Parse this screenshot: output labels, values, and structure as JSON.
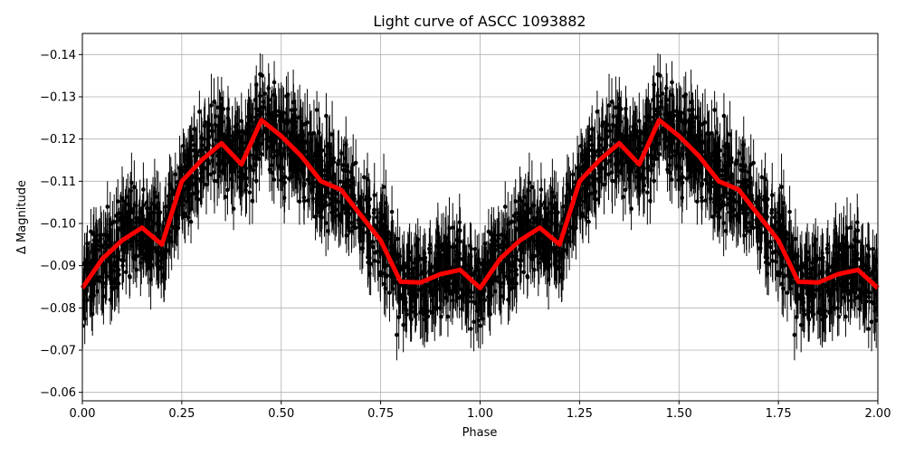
{
  "chart_data": {
    "type": "scatter",
    "title": "Light curve of ASCC 1093882",
    "xlabel": "Phase",
    "ylabel": "Δ Magnitude",
    "xlim": [
      0,
      2
    ],
    "ylim": [
      -0.145,
      -0.058
    ],
    "y_inverted": true,
    "grid": true,
    "xticks": [
      "0.00",
      "0.25",
      "0.50",
      "0.75",
      "1.00",
      "1.25",
      "1.50",
      "1.75",
      "2.00"
    ],
    "xtick_values": [
      0,
      0.25,
      0.5,
      0.75,
      1,
      1.25,
      1.5,
      1.75,
      2
    ],
    "yticks": [
      "−0.14",
      "−0.13",
      "−0.12",
      "−0.11",
      "−0.10",
      "−0.09",
      "−0.08",
      "−0.07",
      "−0.06"
    ],
    "ytick_values": [
      -0.14,
      -0.13,
      -0.12,
      -0.11,
      -0.1,
      -0.09,
      -0.08,
      -0.07,
      -0.06
    ],
    "series": [
      {
        "kind": "errorbar-points",
        "color": "#000000"
      },
      {
        "kind": "line",
        "color": "#ff0000",
        "x": [
          0,
          0.05,
          0.1,
          0.15,
          0.2,
          0.25,
          0.3,
          0.35,
          0.4,
          0.45,
          0.5,
          0.55,
          0.6,
          0.65,
          0.7,
          0.75,
          0.8,
          0.85,
          0.9,
          0.95,
          1.0,
          1.05,
          1.1,
          1.15,
          1.2,
          1.25,
          1.3,
          1.35,
          1.4,
          1.45,
          1.5,
          1.55,
          1.6,
          1.65,
          1.7,
          1.75,
          1.8,
          1.85,
          1.9,
          1.95,
          2.0
        ],
        "y": [
          -0.0847,
          -0.0916,
          -0.096,
          -0.099,
          -0.095,
          -0.11,
          -0.115,
          -0.119,
          -0.114,
          -0.1245,
          -0.1207,
          -0.116,
          -0.11,
          -0.108,
          -0.102,
          -0.096,
          -0.0862,
          -0.086,
          -0.088,
          -0.089,
          -0.0847,
          -0.0916,
          -0.096,
          -0.099,
          -0.095,
          -0.11,
          -0.115,
          -0.119,
          -0.114,
          -0.1245,
          -0.1207,
          -0.116,
          -0.11,
          -0.108,
          -0.102,
          -0.096,
          -0.0862,
          -0.086,
          -0.088,
          -0.089,
          -0.0847
        ]
      }
    ]
  }
}
